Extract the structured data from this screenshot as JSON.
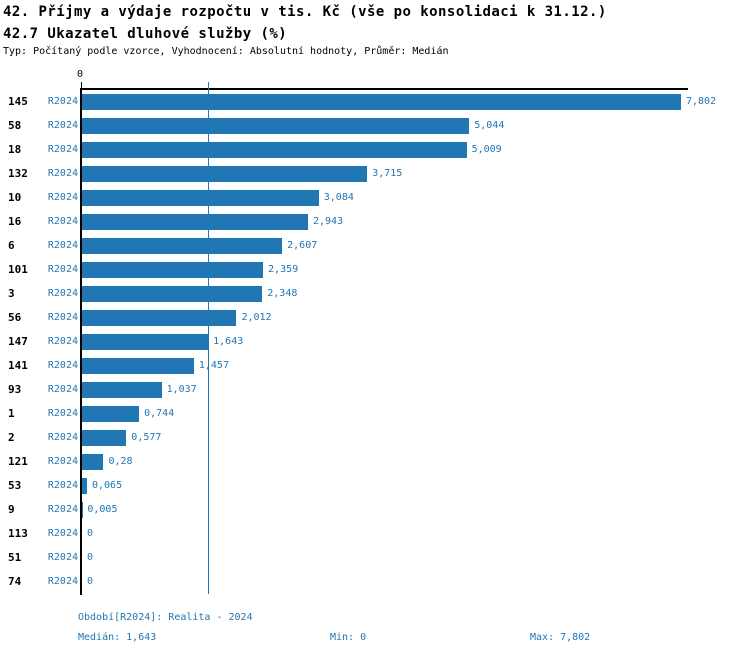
{
  "title": "42. Příjmy a výdaje rozpočtu v tis. Kč (vše po konsolidaci k 31.12.)",
  "subtitle": "42.7 Ukazatel dluhové služby (%)",
  "meta": "Typ: Počítaný podle vzorce, Vyhodnocení: Absolutní hodnoty, Průměr: Medián",
  "colors": {
    "bar": "#2176b4",
    "blue_text": "#2176b4",
    "axis": "#000000"
  },
  "chart_data": {
    "type": "bar",
    "orientation": "horizontal",
    "series_label": "R2024",
    "axis_zero_label": "0",
    "categories": [
      "145",
      "58",
      "18",
      "132",
      "10",
      "16",
      "6",
      "101",
      "3",
      "56",
      "147",
      "141",
      "93",
      "1",
      "2",
      "121",
      "53",
      "9",
      "113",
      "51",
      "74"
    ],
    "values": [
      7.802,
      5.044,
      5.009,
      3.715,
      3.084,
      2.943,
      2.607,
      2.359,
      2.348,
      2.012,
      1.643,
      1.457,
      1.037,
      0.744,
      0.577,
      0.28,
      0.065,
      0.005,
      0,
      0,
      0
    ],
    "value_labels": [
      "7,802",
      "5,044",
      "5,009",
      "3,715",
      "3,084",
      "2,943",
      "2,607",
      "2,359",
      "2,348",
      "2,012",
      "1,643",
      "1,457",
      "1,037",
      "0,744",
      "0,577",
      "0,28",
      "0,065",
      "0,005",
      "0",
      "0",
      "0"
    ],
    "xlim": [
      0,
      7.802
    ],
    "median": 1.643,
    "median_label": "1,643",
    "grid": false,
    "legend_position": "none"
  },
  "footer": {
    "period": "Období[R2024]: Realita - 2024",
    "median": "Medián: 1,643",
    "min": "Min: 0",
    "max": "Max: 7,802"
  }
}
